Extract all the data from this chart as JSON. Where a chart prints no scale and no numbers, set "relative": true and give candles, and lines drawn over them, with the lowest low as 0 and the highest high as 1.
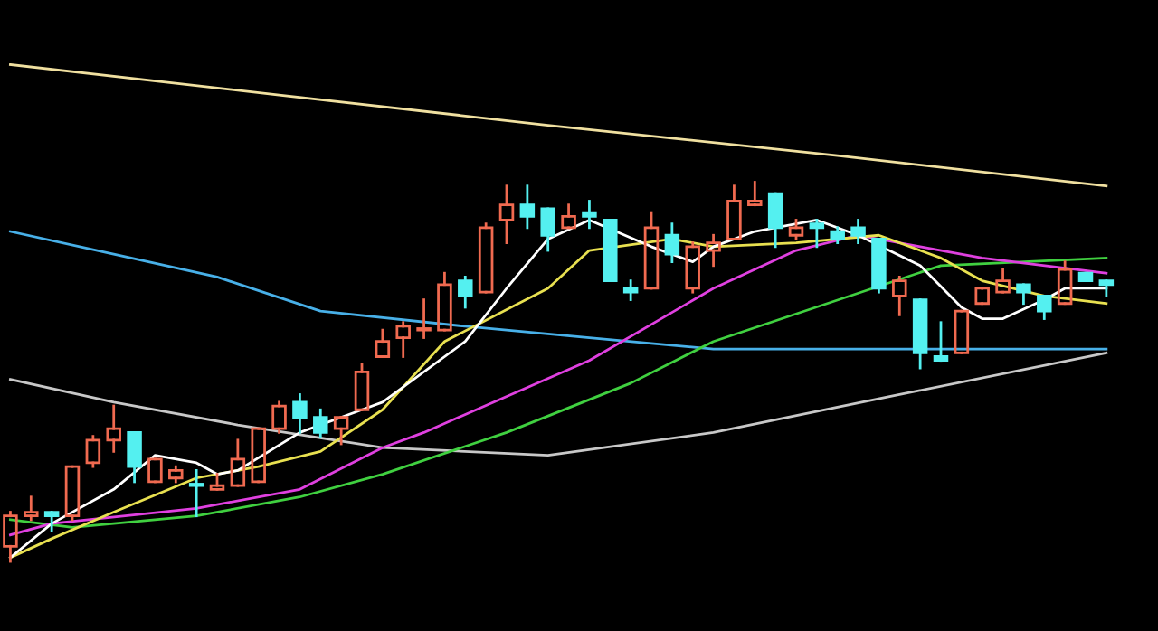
{
  "chart_data": {
    "type": "candlestick",
    "relative": true,
    "categories": [
      null,
      null,
      null,
      null,
      null,
      null,
      null,
      null,
      null,
      null,
      null,
      null,
      null,
      null,
      null,
      null,
      null,
      null,
      null,
      null,
      null,
      null,
      null,
      null,
      null,
      null,
      null,
      null,
      null,
      null,
      null,
      null,
      null,
      null,
      null,
      null,
      null,
      null,
      null,
      null,
      null,
      null,
      null,
      null,
      null,
      null,
      null,
      null,
      null,
      null,
      null,
      null,
      null,
      null
    ],
    "ohlc": [
      [
        0.04,
        0.13,
        0,
        0.12
      ],
      [
        0.12,
        0.17,
        0.11,
        0.13
      ],
      [
        0.13,
        0.13,
        0.08,
        0.12
      ],
      [
        0.12,
        0.25,
        0.11,
        0.25
      ],
      [
        0.26,
        0.33,
        0.25,
        0.32
      ],
      [
        0.32,
        0.41,
        0.29,
        0.35
      ],
      [
        0.34,
        0.34,
        0.21,
        0.25
      ],
      [
        0.21,
        0.27,
        0.21,
        0.27
      ],
      [
        0.22,
        0.25,
        0.21,
        0.24
      ],
      [
        0.2,
        0.24,
        0.12,
        0.2
      ],
      [
        0.19,
        0.23,
        0.19,
        0.2
      ],
      [
        0.2,
        0.32,
        0.2,
        0.27
      ],
      [
        0.21,
        0.35,
        0.21,
        0.35
      ],
      [
        0.35,
        0.42,
        0.34,
        0.41
      ],
      [
        0.42,
        0.44,
        0.34,
        0.38
      ],
      [
        0.38,
        0.4,
        0.33,
        0.34
      ],
      [
        0.35,
        0.38,
        0.31,
        0.38
      ],
      [
        0.4,
        0.52,
        0.4,
        0.5
      ],
      [
        0.54,
        0.61,
        0.54,
        0.58
      ],
      [
        0.59,
        0.63,
        0.54,
        0.62
      ],
      [
        0.61,
        0.69,
        0.59,
        0.61
      ],
      [
        0.61,
        0.76,
        0.61,
        0.73
      ],
      [
        0.74,
        0.75,
        0.67,
        0.7
      ],
      [
        0.71,
        0.89,
        0.71,
        0.88
      ],
      [
        0.9,
        0.99,
        0.84,
        0.94
      ],
      [
        0.94,
        0.99,
        0.88,
        0.91
      ],
      [
        0.93,
        0.93,
        0.82,
        0.86
      ],
      [
        0.88,
        0.94,
        0.88,
        0.91
      ],
      [
        0.92,
        0.95,
        0.88,
        0.91
      ],
      [
        0.9,
        0.9,
        0.74,
        0.74
      ],
      [
        0.72,
        0.74,
        0.69,
        0.71
      ],
      [
        0.72,
        0.92,
        0.72,
        0.88
      ],
      [
        0.86,
        0.89,
        0.79,
        0.81
      ],
      [
        0.72,
        0.84,
        0.71,
        0.83
      ],
      [
        0.82,
        0.86,
        0.78,
        0.84
      ],
      [
        0.85,
        0.99,
        0.85,
        0.95
      ],
      [
        0.94,
        1,
        0.94,
        0.95
      ],
      [
        0.97,
        0.97,
        0.83,
        0.88
      ],
      [
        0.86,
        0.9,
        0.85,
        0.88
      ],
      [
        0.89,
        0.9,
        0.83,
        0.88
      ],
      [
        0.87,
        0.88,
        0.84,
        0.85
      ],
      [
        0.88,
        0.9,
        0.84,
        0.86
      ],
      [
        0.85,
        0.85,
        0.71,
        0.72
      ],
      [
        0.7,
        0.75,
        0.65,
        0.74
      ],
      [
        0.69,
        0.69,
        0.51,
        0.55
      ],
      [
        0.54,
        0.63,
        0.53,
        0.53
      ],
      [
        0.55,
        0.66,
        0.55,
        0.66
      ],
      [
        0.68,
        0.72,
        0.68,
        0.72
      ],
      [
        0.71,
        0.77,
        0.71,
        0.74
      ],
      [
        0.73,
        0.73,
        0.68,
        0.71
      ],
      [
        0.7,
        0.7,
        0.64,
        0.66
      ],
      [
        0.68,
        0.79,
        0.68,
        0.77
      ],
      [
        0.76,
        0.76,
        0.74,
        0.74
      ],
      [
        0.74,
        0.74,
        0.7,
        0.73
      ]
    ],
    "colors": [
      "#f06a50",
      "#f06a50",
      "#54f0f0",
      "#f06a50",
      "#f06a50",
      "#f06a50",
      "#54f0f0",
      "#f06a50",
      "#f06a50",
      "#54f0f0",
      "#f06a50",
      "#f06a50",
      "#f06a50",
      "#f06a50",
      "#54f0f0",
      "#54f0f0",
      "#f06a50",
      "#f06a50",
      "#f06a50",
      "#f06a50",
      "#f06a50",
      "#f06a50",
      "#54f0f0",
      "#f06a50",
      "#f06a50",
      "#54f0f0",
      "#54f0f0",
      "#f06a50",
      "#54f0f0",
      "#54f0f0",
      "#54f0f0",
      "#f06a50",
      "#54f0f0",
      "#f06a50",
      "#f06a50",
      "#f06a50",
      "#f06a50",
      "#54f0f0",
      "#f06a50",
      "#54f0f0",
      "#54f0f0",
      "#54f0f0",
      "#54f0f0",
      "#f06a50",
      "#54f0f0",
      "#54f0f0",
      "#f06a50",
      "#f06a50",
      "#f06a50",
      "#54f0f0",
      "#54f0f0",
      "#f06a50",
      "#54f0f0",
      "#54f0f0"
    ],
    "series": [
      {
        "type": "line",
        "color": "#f0e0a0",
        "values": [
          1.31,
          null,
          null,
          null,
          null,
          null,
          null,
          null,
          null,
          null,
          null,
          null,
          null,
          1.23,
          null,
          null,
          null,
          null,
          null,
          null,
          null,
          null,
          null,
          null,
          null,
          null,
          1.15,
          null,
          null,
          null,
          null,
          null,
          null,
          null,
          null,
          null,
          null,
          null,
          null,
          null,
          1.07,
          null,
          null,
          null,
          null,
          null,
          null,
          null,
          null,
          null,
          null,
          null,
          null,
          0.99
        ]
      },
      {
        "type": "line",
        "color": "#48b0e8",
        "values": [
          0.87,
          null,
          null,
          null,
          null,
          0.81,
          null,
          null,
          null,
          null,
          0.75,
          null,
          null,
          null,
          null,
          0.66,
          null,
          null,
          null,
          null,
          null,
          null,
          0.62,
          null,
          null,
          null,
          null,
          null,
          0.59,
          null,
          null,
          null,
          null,
          null,
          0.56,
          null,
          null,
          null,
          null,
          null,
          null,
          null,
          null,
          null,
          null,
          null,
          null,
          null,
          null,
          null,
          null,
          null,
          null,
          0.56
        ]
      },
      {
        "type": "line",
        "color": "#c8c8c8",
        "values": [
          0.48,
          null,
          null,
          null,
          null,
          0.42,
          null,
          null,
          null,
          null,
          null,
          0.36,
          null,
          null,
          null,
          null,
          null,
          null,
          0.3,
          null,
          null,
          null,
          null,
          null,
          null,
          null,
          0.28,
          null,
          null,
          null,
          null,
          null,
          null,
          null,
          0.34,
          null,
          null,
          null,
          null,
          null,
          null,
          null,
          null,
          0.44,
          null,
          null,
          null,
          null,
          null,
          null,
          null,
          null,
          null,
          0.55
        ]
      },
      {
        "type": "line",
        "color": "#40d040",
        "values": [
          0.11,
          null,
          null,
          0.09,
          null,
          null,
          null,
          null,
          null,
          0.12,
          null,
          null,
          null,
          null,
          0.17,
          null,
          null,
          null,
          0.23,
          null,
          null,
          null,
          null,
          null,
          0.34,
          null,
          null,
          null,
          null,
          null,
          0.47,
          null,
          null,
          null,
          0.58,
          null,
          null,
          null,
          null,
          null,
          null,
          null,
          null,
          null,
          null,
          0.78,
          null,
          null,
          null,
          null,
          null,
          null,
          null,
          0.8
        ]
      },
      {
        "type": "line",
        "color": "#e040e0",
        "values": [
          0.07,
          null,
          0.1,
          null,
          null,
          null,
          null,
          null,
          null,
          0.14,
          null,
          null,
          null,
          null,
          0.19,
          null,
          null,
          null,
          0.3,
          null,
          0.34,
          null,
          null,
          null,
          null,
          null,
          null,
          null,
          0.53,
          null,
          null,
          null,
          null,
          null,
          0.72,
          null,
          null,
          null,
          0.82,
          null,
          null,
          0.86,
          null,
          null,
          0.83,
          null,
          null,
          0.8,
          null,
          null,
          null,
          null,
          null,
          0.76
        ]
      },
      {
        "type": "line",
        "color": "#e8e050",
        "values": [
          0.01,
          null,
          0.06,
          null,
          null,
          0.13,
          null,
          null,
          null,
          0.22,
          null,
          null,
          0.25,
          null,
          null,
          0.29,
          null,
          null,
          0.4,
          null,
          null,
          0.58,
          null,
          null,
          null,
          null,
          0.72,
          null,
          0.82,
          null,
          null,
          null,
          0.85,
          null,
          0.83,
          null,
          null,
          null,
          0.84,
          null,
          null,
          null,
          0.86,
          null,
          null,
          0.8,
          null,
          0.74,
          null,
          null,
          0.7,
          null,
          null,
          0.68
        ]
      },
      {
        "type": "line",
        "color": "#ffffff",
        "values": [
          0.01,
          null,
          0.1,
          null,
          null,
          0.19,
          null,
          0.28,
          null,
          0.26,
          0.23,
          0.24,
          null,
          null,
          0.34,
          null,
          null,
          0.4,
          0.42,
          null,
          null,
          null,
          0.58,
          null,
          0.72,
          null,
          0.85,
          null,
          0.9,
          null,
          null,
          0.83,
          null,
          0.79,
          0.83,
          null,
          0.87,
          null,
          null,
          0.9,
          null,
          0.86,
          null,
          null,
          0.78,
          null,
          0.67,
          0.64,
          0.64,
          null,
          0.69,
          0.72,
          null,
          0.72
        ]
      }
    ]
  }
}
